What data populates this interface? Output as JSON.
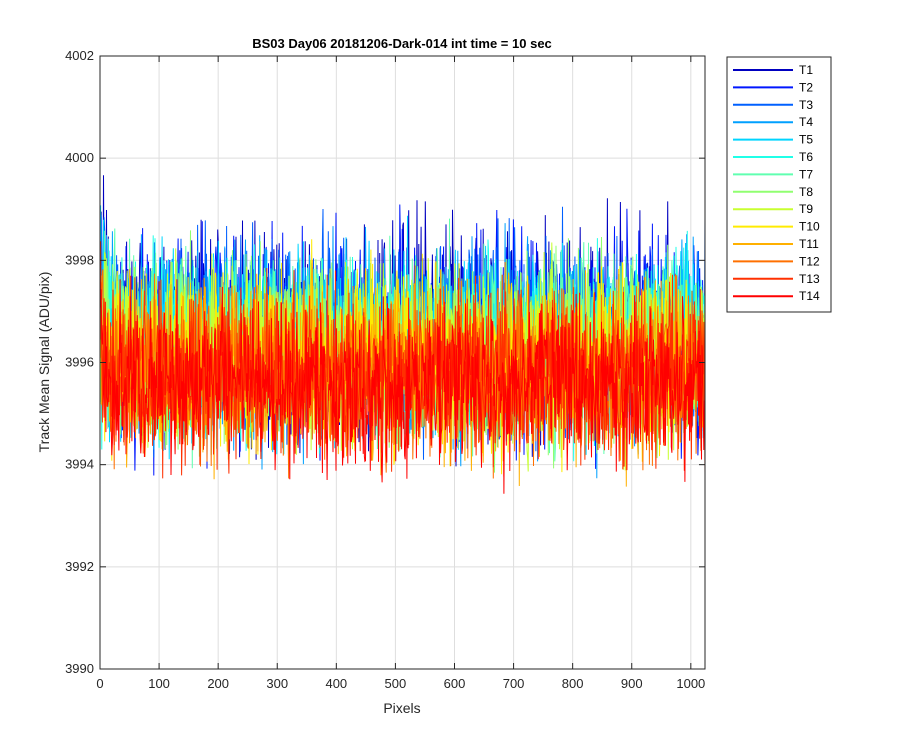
{
  "chart_data": {
    "type": "line",
    "title": "BS03 Day06 20181206-Dark-014 int time = 10 sec",
    "xlabel": "Pixels",
    "ylabel": "Track Mean Signal (ADU/pix)",
    "xlim": [
      0,
      1024
    ],
    "ylim": [
      3990,
      4002
    ],
    "xticks": [
      0,
      100,
      200,
      300,
      400,
      500,
      600,
      700,
      800,
      900,
      1000
    ],
    "yticks": [
      3990,
      3992,
      3994,
      3996,
      3998,
      4000,
      4002
    ],
    "grid": true,
    "legend_position": "outside-right",
    "num_points": 1024,
    "series": [
      {
        "name": "T1",
        "color": "#0000c0",
        "mean": 3996.6,
        "noise_amplitude": 2.9
      },
      {
        "name": "T2",
        "color": "#0017ff",
        "mean": 3996.5,
        "noise_amplitude": 2.9
      },
      {
        "name": "T3",
        "color": "#0060ff",
        "mean": 3996.5,
        "noise_amplitude": 2.8
      },
      {
        "name": "T4",
        "color": "#00a0ff",
        "mean": 3996.4,
        "noise_amplitude": 2.8
      },
      {
        "name": "T5",
        "color": "#00d5ff",
        "mean": 3996.4,
        "noise_amplitude": 2.7
      },
      {
        "name": "T6",
        "color": "#20ffe8",
        "mean": 3996.3,
        "noise_amplitude": 2.7
      },
      {
        "name": "T7",
        "color": "#60ffb0",
        "mean": 3996.3,
        "noise_amplitude": 2.6
      },
      {
        "name": "T8",
        "color": "#90ff70",
        "mean": 3996.2,
        "noise_amplitude": 2.6
      },
      {
        "name": "T9",
        "color": "#c8ff30",
        "mean": 3996.1,
        "noise_amplitude": 2.6
      },
      {
        "name": "T10",
        "color": "#ffeb00",
        "mean": 3996.0,
        "noise_amplitude": 2.5
      },
      {
        "name": "T11",
        "color": "#ffb000",
        "mean": 3995.9,
        "noise_amplitude": 2.5
      },
      {
        "name": "T12",
        "color": "#ff7000",
        "mean": 3995.8,
        "noise_amplitude": 2.4
      },
      {
        "name": "T13",
        "color": "#ff3000",
        "mean": 3995.7,
        "noise_amplitude": 2.4
      },
      {
        "name": "T14",
        "color": "#ff0000",
        "mean": 3995.6,
        "noise_amplitude": 2.3
      }
    ]
  }
}
